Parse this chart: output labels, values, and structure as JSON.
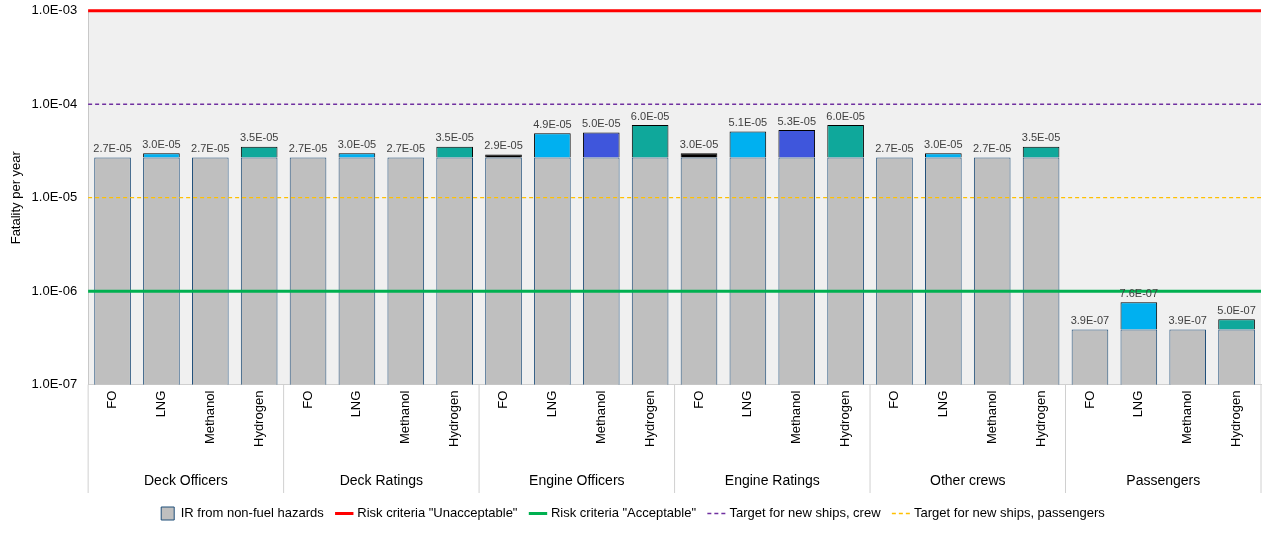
{
  "chart_data": {
    "type": "bar",
    "stacked": true,
    "categories": [
      "FO",
      "LNG",
      "Methanol",
      "Hydrogen",
      "FO",
      "LNG",
      "Methanol",
      "Hydrogen",
      "FO",
      "LNG",
      "Methanol",
      "Hydrogen",
      "FO",
      "LNG",
      "Methanol",
      "Hydrogen",
      "FO",
      "LNG",
      "Methanol",
      "Hydrogen",
      "FO",
      "LNG",
      "Methanol",
      "Hydrogen"
    ],
    "series": [
      {
        "name": "IR from non-fuel hazards",
        "color": "#bfbfbf",
        "values": [
          2.7e-05,
          2.7e-05,
          2.7e-05,
          2.7e-05,
          2.7e-05,
          2.7e-05,
          2.7e-05,
          2.7e-05,
          2.7e-05,
          2.7e-05,
          2.7e-05,
          2.7e-05,
          2.7e-05,
          2.7e-05,
          2.7e-05,
          2.7e-05,
          2.7e-05,
          2.7e-05,
          2.7e-05,
          2.7e-05,
          3.9e-07,
          3.9e-07,
          3.9e-07,
          3.9e-07
        ]
      },
      {
        "colors": [
          "#000000",
          "#00b0f0",
          "#3f56dc",
          "#0fa89b",
          "#000000",
          "#00b0f0",
          "#3f56dc",
          "#0fa89b",
          "#000000",
          "#00b0f0",
          "#3f56dc",
          "#0fa89b",
          "#000000",
          "#00b0f0",
          "#3f56dc",
          "#0fa89b",
          "#000000",
          "#00b0f0",
          "#3f56dc",
          "#0fa89b",
          "#000000",
          "#00b0f0",
          "#3f56dc",
          "#0fa89b"
        ],
        "values": [
          null,
          3e-06,
          null,
          8e-06,
          null,
          3e-06,
          null,
          8e-06,
          2e-06,
          2.2e-05,
          2.3e-05,
          3.3e-05,
          3e-06,
          2.4e-05,
          2.6e-05,
          3.3e-05,
          null,
          3e-06,
          null,
          8e-06,
          null,
          3.7e-07,
          null,
          1.1e-07
        ]
      }
    ],
    "totals": [
      "2.7E-05",
      "3.0E-05",
      "2.7E-05",
      "3.5E-05",
      "2.7E-05",
      "3.0E-05",
      "2.7E-05",
      "3.5E-05",
      "2.9E-05",
      "4.9E-05",
      "5.0E-05",
      "6.0E-05",
      "3.0E-05",
      "5.1E-05",
      "5.3E-05",
      "6.0E-05",
      "2.7E-05",
      "3.0E-05",
      "2.7E-05",
      "3.5E-05",
      "3.9E-07",
      "7.6E-07",
      "3.9E-07",
      "5.0E-07"
    ],
    "ref_lines": [
      {
        "axis": "y",
        "value": 0.001,
        "label": "Risk criteria \"Unacceptable\"",
        "color": "#ff0000",
        "line_style": "solid"
      },
      {
        "axis": "y",
        "value": 1e-06,
        "label": "Risk criteria \"Acceptable\"",
        "color": "#00b050",
        "line_style": "solid"
      },
      {
        "axis": "y",
        "value": 0.0001,
        "label": "Target for new ships, crew",
        "color": "#7030a0",
        "line_style": "dashed"
      },
      {
        "axis": "y",
        "value": 1e-05,
        "label": "Target for new ships, passengers",
        "color": "#ffc000",
        "line_style": "dashed"
      }
    ],
    "annotations": [
      "Deck Officers",
      "Deck Ratings",
      "Engine Officers",
      "Engine Ratings",
      "Other crews",
      "Passengers"
    ],
    "ylabel": "Fatality per year",
    "log": "y",
    "ylim": [
      1e-07,
      0.001
    ],
    "yticks": [
      {
        "value": 1e-07,
        "label": "1.0E-07"
      },
      {
        "value": 1e-06,
        "label": "1.0E-06"
      },
      {
        "value": 1e-05,
        "label": "1.0E-05"
      },
      {
        "value": 0.0001,
        "label": "1.0E-04"
      },
      {
        "value": 0.001,
        "label": "1.0E-03"
      }
    ],
    "legend": "bottom"
  }
}
